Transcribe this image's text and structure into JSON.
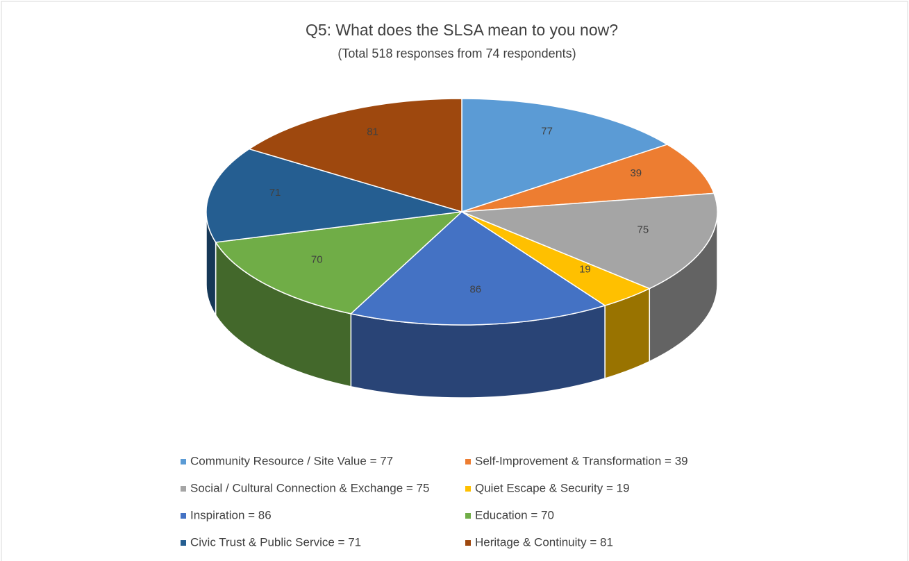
{
  "chart_data": {
    "type": "pie3d",
    "title": "Q5: What does the SLSA mean to you now?",
    "subtitle": "(Total 518 responses from 74 respondents)",
    "categories": [
      "Community Resource / Site Value = 77",
      "Self-Improvement & Transformation = 39",
      "Social / Cultural Connection & Exchange = 75",
      "Quiet Escape & Security = 19",
      "Inspiration = 86",
      "Education = 70",
      "Civic Trust & Public Service = 71",
      "Heritage & Continuity = 81"
    ],
    "values": [
      77,
      39,
      75,
      19,
      86,
      70,
      71,
      81
    ],
    "colors": [
      "#5b9bd5",
      "#ed7d31",
      "#a5a5a5",
      "#ffc000",
      "#4472c4",
      "#70ad47",
      "#255e91",
      "#9e480e"
    ],
    "legend": "bottom"
  }
}
